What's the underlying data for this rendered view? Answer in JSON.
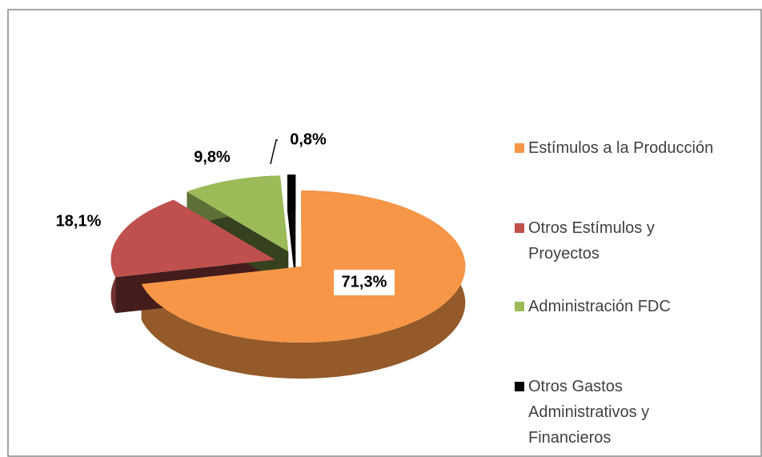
{
  "chart_data": {
    "type": "pie3d",
    "categories": [
      "Estímulos a la Producción",
      "Otros Estímulos y Proyectos",
      "Administración FDC",
      "Otros Gastos Administrativos y Financieros"
    ],
    "values": [
      71.3,
      18.1,
      9.8,
      0.8
    ],
    "value_labels": [
      "71,3%",
      "18,1%",
      "9,8%",
      "0,8%"
    ],
    "colors": [
      "#f79646",
      "#c0504d",
      "#9bbb59",
      "#000000"
    ],
    "legend": "right"
  }
}
